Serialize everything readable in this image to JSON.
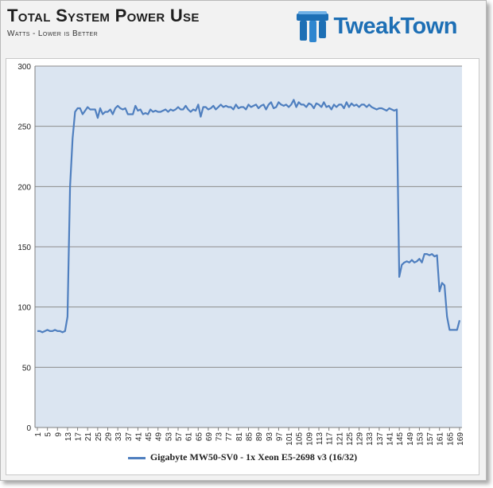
{
  "header": {
    "title": "Total System Power Use",
    "subtitle": "Watts - Lower is Better",
    "logo_text": "TweakTown"
  },
  "colors": {
    "series": "#4f7fbf",
    "plot_bg": "#dbe5f1",
    "grid": "#8c8c8c",
    "logo": "#1d6fb5"
  },
  "chart_data": {
    "type": "line",
    "x": [
      1,
      2,
      3,
      4,
      5,
      6,
      7,
      8,
      9,
      10,
      11,
      12,
      13,
      14,
      15,
      16,
      17,
      18,
      19,
      20,
      21,
      22,
      23,
      24,
      25,
      26,
      27,
      28,
      29,
      30,
      31,
      32,
      33,
      34,
      35,
      36,
      37,
      38,
      39,
      40,
      41,
      42,
      43,
      44,
      45,
      46,
      47,
      48,
      49,
      50,
      51,
      52,
      53,
      54,
      55,
      56,
      57,
      58,
      59,
      60,
      61,
      62,
      63,
      64,
      65,
      66,
      67,
      68,
      69,
      70,
      71,
      72,
      73,
      74,
      75,
      76,
      77,
      78,
      79,
      80,
      81,
      82,
      83,
      84,
      85,
      86,
      87,
      88,
      89,
      90,
      91,
      92,
      93,
      94,
      95,
      96,
      97,
      98,
      99,
      100,
      101,
      102,
      103,
      104,
      105,
      106,
      107,
      108,
      109,
      110,
      111,
      112,
      113,
      114,
      115,
      116,
      117,
      118,
      119,
      120,
      121,
      122,
      123,
      124,
      125,
      126,
      127,
      128,
      129,
      130,
      131,
      132,
      133,
      134,
      135,
      136,
      137,
      138,
      139,
      140,
      141,
      142,
      143,
      144,
      145,
      146,
      147,
      148,
      149,
      150,
      151,
      152,
      153,
      154,
      155,
      156,
      157,
      158,
      159,
      160,
      161,
      162,
      163,
      164,
      165,
      166,
      167,
      168,
      169
    ],
    "series": [
      {
        "name": "Gigabyte MW50-SV0 - 1x Xeon E5-2698 v3 (16/32)",
        "values": [
          80,
          80,
          79,
          80,
          81,
          80,
          80,
          81,
          80,
          80,
          79,
          80,
          92,
          200,
          240,
          262,
          265,
          265,
          260,
          263,
          266,
          264,
          264,
          264,
          257,
          265,
          260,
          262,
          262,
          264,
          260,
          265,
          267,
          265,
          264,
          265,
          260,
          260,
          260,
          267,
          263,
          264,
          260,
          261,
          260,
          264,
          262,
          263,
          262,
          262,
          263,
          264,
          262,
          264,
          263,
          264,
          266,
          264,
          264,
          267,
          264,
          262,
          264,
          263,
          268,
          258,
          266,
          266,
          264,
          265,
          267,
          264,
          266,
          268,
          266,
          267,
          266,
          266,
          264,
          268,
          265,
          266,
          266,
          264,
          268,
          266,
          267,
          268,
          265,
          267,
          268,
          264,
          268,
          270,
          265,
          266,
          270,
          268,
          267,
          268,
          266,
          268,
          272,
          266,
          270,
          268,
          268,
          266,
          269,
          268,
          265,
          269,
          268,
          266,
          270,
          266,
          267,
          264,
          268,
          266,
          268,
          268,
          265,
          270,
          266,
          269,
          267,
          268,
          266,
          268,
          268,
          266,
          268,
          266,
          265,
          264,
          265,
          265,
          264,
          263,
          265,
          264,
          263,
          264,
          125,
          135,
          137,
          138,
          137,
          139,
          137,
          138,
          140,
          137,
          144,
          144,
          143,
          144,
          142,
          143,
          113,
          120,
          118,
          92,
          81,
          81,
          81,
          81,
          89
        ]
      }
    ],
    "xtick_labels": [
      "1",
      "5",
      "9",
      "13",
      "17",
      "21",
      "25",
      "29",
      "33",
      "37",
      "41",
      "45",
      "49",
      "53",
      "57",
      "61",
      "65",
      "69",
      "73",
      "77",
      "81",
      "85",
      "89",
      "93",
      "97",
      "101",
      "105",
      "109",
      "113",
      "117",
      "121",
      "125",
      "129",
      "133",
      "137",
      "141",
      "145",
      "149",
      "153",
      "157",
      "161",
      "165",
      "169"
    ],
    "ytick_labels": [
      "0",
      "50",
      "100",
      "150",
      "200",
      "250",
      "300"
    ],
    "ylim": [
      0,
      300
    ],
    "y_step": 50,
    "grid": true,
    "legend_position": "bottom"
  }
}
